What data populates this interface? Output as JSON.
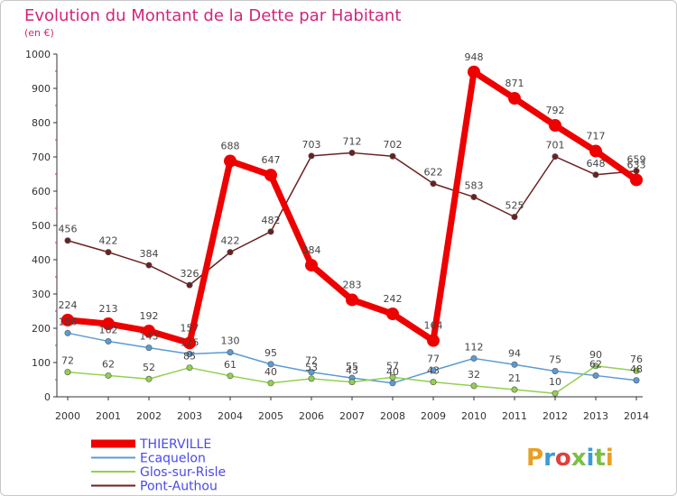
{
  "chart_data": {
    "type": "line",
    "title": "Evolution du Montant de la Dette par Habitant",
    "subtitle": "(en €)",
    "xlabel": "",
    "ylabel": "",
    "categories": [
      "2000",
      "2001",
      "2002",
      "2003",
      "2004",
      "2005",
      "2006",
      "2007",
      "2008",
      "2009",
      "2010",
      "2011",
      "2012",
      "2013",
      "2014"
    ],
    "ylim": [
      0,
      1000
    ],
    "yticks": [
      0,
      100,
      200,
      300,
      400,
      500,
      600,
      700,
      800,
      900,
      1000
    ],
    "grid": false,
    "legend_position": "bottom-left",
    "series": [
      {
        "name": "THIERVILLE",
        "color": "#ee0000",
        "values": [
          224,
          213,
          192,
          157,
          688,
          647,
          384,
          283,
          242,
          164,
          948,
          871,
          792,
          717,
          633
        ]
      },
      {
        "name": "Ecaquelon",
        "color": "#5b9bd5",
        "values": [
          186,
          162,
          143,
          125,
          130,
          95,
          72,
          55,
          40,
          77,
          112,
          94,
          75,
          62,
          48
        ]
      },
      {
        "name": "Glos-sur-Risle",
        "color": "#92d050",
        "values": [
          72,
          62,
          52,
          85,
          61,
          40,
          53,
          43,
          57,
          43,
          32,
          21,
          10,
          90,
          76
        ]
      },
      {
        "name": "Pont-Authou",
        "color": "#6b2020",
        "values": [
          456,
          422,
          384,
          326,
          422,
          482,
          703,
          712,
          702,
          622,
          583,
          525,
          701,
          648,
          659
        ]
      }
    ]
  },
  "logo_text": "Proxiti",
  "logo_colors": [
    "#e8a020",
    "#3a9bd9",
    "#e04040",
    "#7ac143",
    "#3a9bd9",
    "#7ac143",
    "#e8a020"
  ]
}
